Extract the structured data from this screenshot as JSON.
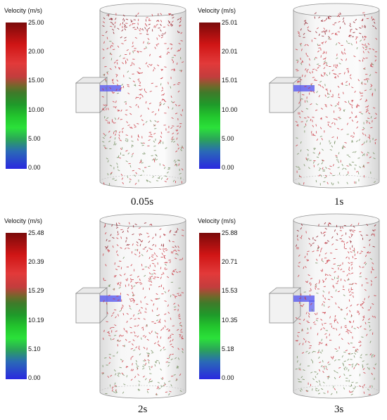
{
  "legend_title": "Velocity (m/s)",
  "panels": [
    {
      "time": "0.05s",
      "ticks": [
        "25.00",
        "20.00",
        "15.00",
        "10.00",
        "5.00",
        "0.00"
      ]
    },
    {
      "time": "1s",
      "ticks": [
        "25.01",
        "20.01",
        "15.01",
        "10.00",
        "5.00",
        "0.00"
      ]
    },
    {
      "time": "2s",
      "ticks": [
        "25.48",
        "20.39",
        "15.29",
        "10.19",
        "5.10",
        "0.00"
      ]
    },
    {
      "time": "3s",
      "ticks": [
        "25.88",
        "20.71",
        "15.53",
        "10.35",
        "5.18",
        "0.00"
      ]
    }
  ],
  "colors": {
    "inlet_stream": "#5b5bf0",
    "particle_red": "#c8303a",
    "particle_dark_red": "#8a1520",
    "particle_green": "#6f8a5a",
    "cylinder_edge": "#8f8f8f"
  }
}
